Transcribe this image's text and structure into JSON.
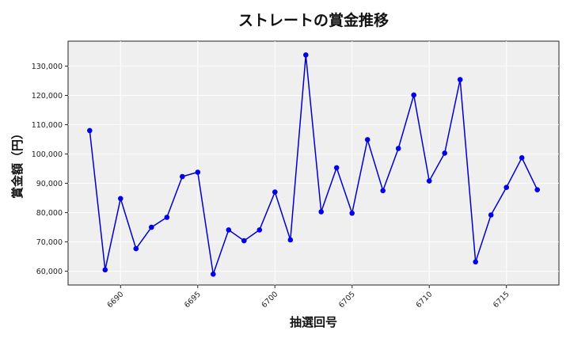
{
  "chart_data": {
    "type": "line",
    "title": "ストレートの賞金推移",
    "xlabel": "抽選回号",
    "ylabel": "賞金額（円）",
    "x": [
      6688,
      6689,
      6690,
      6691,
      6692,
      6693,
      6694,
      6695,
      6696,
      6697,
      6698,
      6699,
      6700,
      6701,
      6702,
      6703,
      6704,
      6705,
      6706,
      6707,
      6708,
      6709,
      6710,
      6711,
      6712,
      6713,
      6714,
      6715,
      6716,
      6717
    ],
    "series": [
      {
        "values": [
          108000,
          60500,
          84800,
          67700,
          75000,
          78400,
          92300,
          93800,
          59000,
          74100,
          70400,
          74100,
          87000,
          70700,
          133800,
          80300,
          95300,
          79800,
          104900,
          87500,
          101900,
          120100,
          90800,
          100300,
          125400,
          63200,
          79200,
          88600,
          98700,
          87800
        ],
        "color": "#0000cc"
      }
    ],
    "xticks": [
      6690,
      6695,
      6700,
      6705,
      6710,
      6715
    ],
    "xtick_labels": [
      "6690",
      "6695",
      "6700",
      "6705",
      "6710",
      "6715"
    ],
    "yticks": [
      60000,
      70000,
      80000,
      90000,
      100000,
      110000,
      120000,
      130000
    ],
    "ytick_labels": [
      "60,000",
      "70,000",
      "80,000",
      "90,000",
      "100,000",
      "110,000",
      "120,000",
      "130,000"
    ],
    "xlim": [
      6686.6,
      6718.4
    ],
    "ylim": [
      55300,
      138500
    ],
    "grid": true,
    "background": "#efefef",
    "line_color": "#0000cc",
    "marker_color": "#0000ee"
  }
}
